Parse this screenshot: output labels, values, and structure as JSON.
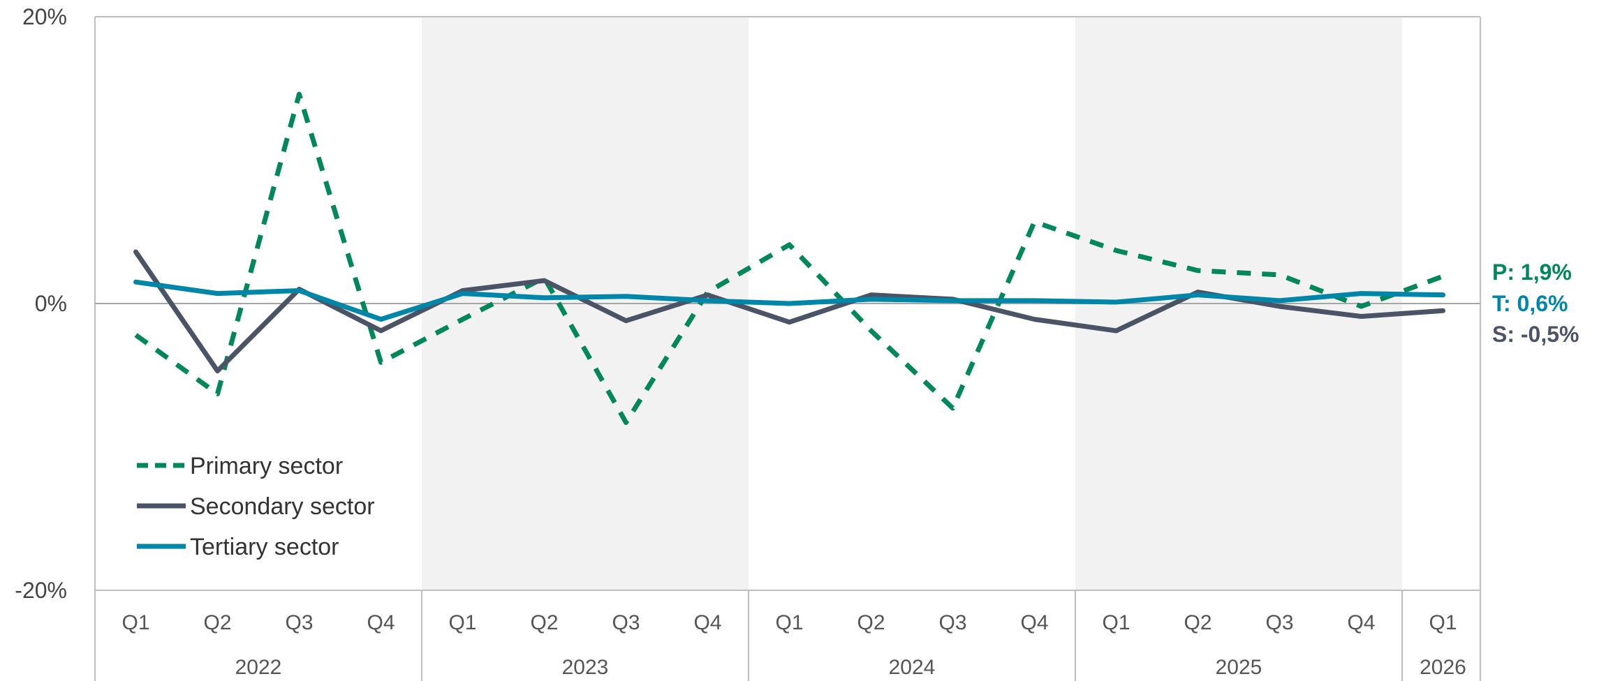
{
  "chart_data": {
    "type": "line",
    "y_ticks": [
      "20%",
      "0%",
      "-20%"
    ],
    "ylim": [
      -20,
      20
    ],
    "periods": [
      {
        "year": "2022",
        "quarters": [
          "Q1",
          "Q2",
          "Q3",
          "Q4"
        ],
        "shaded": false
      },
      {
        "year": "2023",
        "quarters": [
          "Q1",
          "Q2",
          "Q3",
          "Q4"
        ],
        "shaded": true
      },
      {
        "year": "2024",
        "quarters": [
          "Q1",
          "Q2",
          "Q3",
          "Q4"
        ],
        "shaded": false
      },
      {
        "year": "2025",
        "quarters": [
          "Q1",
          "Q2",
          "Q3",
          "Q4"
        ],
        "shaded": true
      },
      {
        "year": "2026",
        "quarters": [
          "Q1"
        ],
        "shaded": false
      }
    ],
    "series": [
      {
        "name": "Primary sector",
        "key": "primary",
        "color": "#00875A",
        "style": "dashed",
        "values": [
          -2.2,
          -6.3,
          14.6,
          -4.1,
          -1.1,
          1.8,
          -8.3,
          0.8,
          4.1,
          -1.9,
          -7.3,
          5.7,
          3.7,
          2.3,
          2.0,
          -0.2,
          1.9
        ]
      },
      {
        "name": "Secondary sector",
        "key": "secondary",
        "color": "#4A5466",
        "style": "solid",
        "values": [
          3.6,
          -4.7,
          1.0,
          -1.9,
          0.9,
          1.6,
          -1.2,
          0.6,
          -1.3,
          0.6,
          0.3,
          -1.1,
          -1.9,
          0.8,
          -0.2,
          -0.9,
          -0.5
        ]
      },
      {
        "name": "Tertiary sector",
        "key": "tertiary",
        "color": "#0086A8",
        "style": "solid",
        "values": [
          1.5,
          0.7,
          0.9,
          -1.1,
          0.7,
          0.4,
          0.5,
          0.2,
          0.0,
          0.3,
          0.2,
          0.2,
          0.1,
          0.6,
          0.2,
          0.7,
          0.6
        ]
      }
    ],
    "end_labels": [
      {
        "text": "P: 1,9%",
        "color": "#00875A"
      },
      {
        "text": "T: 0,6%",
        "color": "#0086A8"
      },
      {
        "text": "S: -0,5%",
        "color": "#4A5466"
      }
    ],
    "legend_position": "bottom-left",
    "grid": false
  }
}
